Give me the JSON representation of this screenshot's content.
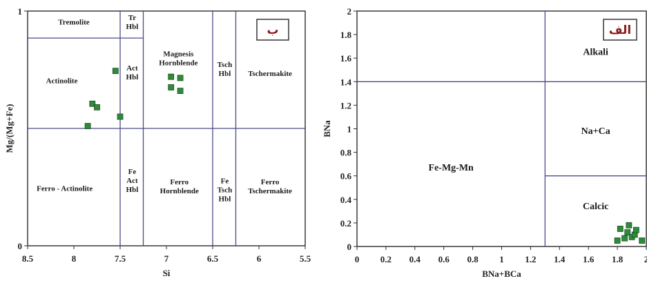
{
  "chart_data": [
    {
      "type": "scatter",
      "panel_label": "ب",
      "xlabel": "Si",
      "ylabel": "Mg/(Mg+Fe)",
      "xlim": [
        8.5,
        5.5
      ],
      "ylim": [
        0,
        1
      ],
      "x_ticks": [
        "8.5",
        "8",
        "7.5",
        "7",
        "6.5",
        "6",
        "5.5"
      ],
      "y_ticks": [
        "0",
        "1"
      ],
      "fields": [
        {
          "lines": [
            "Tremolite"
          ],
          "x": 8.0,
          "y": 0.955
        },
        {
          "lines": [
            "Tr",
            "Hbl"
          ],
          "x": 7.37,
          "y": 0.955
        },
        {
          "lines": [
            "Actinolite"
          ],
          "x": 8.13,
          "y": 0.705
        },
        {
          "lines": [
            "Act",
            "Hbl"
          ],
          "x": 7.37,
          "y": 0.74
        },
        {
          "lines": [
            "Magnesis",
            "Hornblende"
          ],
          "x": 6.87,
          "y": 0.8
        },
        {
          "lines": [
            "Tsch",
            "Hbl"
          ],
          "x": 6.37,
          "y": 0.755
        },
        {
          "lines": [
            "Tschermakite"
          ],
          "x": 5.88,
          "y": 0.735
        },
        {
          "lines": [
            "Ferro - Actinolite"
          ],
          "x": 8.1,
          "y": 0.245
        },
        {
          "lines": [
            "Fe",
            "Act",
            "Hbl"
          ],
          "x": 7.37,
          "y": 0.28
        },
        {
          "lines": [
            "Ferro",
            "Hornblende"
          ],
          "x": 6.86,
          "y": 0.255
        },
        {
          "lines": [
            "Fe",
            "Tsch",
            "Hbl"
          ],
          "x": 6.37,
          "y": 0.24
        },
        {
          "lines": [
            "Ferro",
            "Tschermakite"
          ],
          "x": 5.88,
          "y": 0.255
        }
      ],
      "boundaries": {
        "horizontal": [
          {
            "y": 0.885,
            "x_from": 8.5,
            "x_to": 7.25
          },
          {
            "y": 0.5,
            "x_from": 8.5,
            "x_to": 5.5
          }
        ],
        "vertical": [
          7.5,
          7.25,
          6.5,
          6.25
        ]
      },
      "points": [
        {
          "x": 7.55,
          "y": 0.745
        },
        {
          "x": 7.8,
          "y": 0.605
        },
        {
          "x": 7.75,
          "y": 0.59
        },
        {
          "x": 7.5,
          "y": 0.55
        },
        {
          "x": 7.85,
          "y": 0.51
        },
        {
          "x": 6.95,
          "y": 0.72
        },
        {
          "x": 6.85,
          "y": 0.715
        },
        {
          "x": 6.95,
          "y": 0.675
        },
        {
          "x": 6.85,
          "y": 0.66
        }
      ]
    },
    {
      "type": "scatter",
      "panel_label": "الف",
      "xlabel": "BNa+BCa",
      "ylabel": "BNa",
      "xlim": [
        0,
        2
      ],
      "ylim": [
        0,
        2
      ],
      "x_ticks": [
        "0",
        "0.2",
        "0.4",
        "0.6",
        "0.8",
        "1",
        "1.2",
        "1.4",
        "1.6",
        "1.8",
        "2"
      ],
      "y_ticks": [
        "0",
        "0.2",
        "0.4",
        "0.6",
        "0.8",
        "1",
        "1.2",
        "1.4",
        "1.6",
        "1.8",
        "2"
      ],
      "fields": [
        {
          "lines": [
            "Alkali"
          ],
          "x": 1.65,
          "y": 1.65
        },
        {
          "lines": [
            "Na+Ca"
          ],
          "x": 1.65,
          "y": 0.98
        },
        {
          "lines": [
            "Fe-Mg-Mn"
          ],
          "x": 0.65,
          "y": 0.67
        },
        {
          "lines": [
            "Calcic"
          ],
          "x": 1.65,
          "y": 0.34
        }
      ],
      "boundaries": {
        "horizontal": [
          {
            "y": 1.4,
            "x_from": 0,
            "x_to": 2
          },
          {
            "y": 0.6,
            "x_from": 1.3,
            "x_to": 2
          }
        ],
        "vertical": [
          1.3
        ]
      },
      "points": [
        {
          "x": 1.8,
          "y": 0.05
        },
        {
          "x": 1.82,
          "y": 0.15
        },
        {
          "x": 1.85,
          "y": 0.07
        },
        {
          "x": 1.87,
          "y": 0.12
        },
        {
          "x": 1.88,
          "y": 0.18
        },
        {
          "x": 1.9,
          "y": 0.08
        },
        {
          "x": 1.92,
          "y": 0.1
        },
        {
          "x": 1.93,
          "y": 0.14
        },
        {
          "x": 1.97,
          "y": 0.05
        }
      ]
    }
  ]
}
